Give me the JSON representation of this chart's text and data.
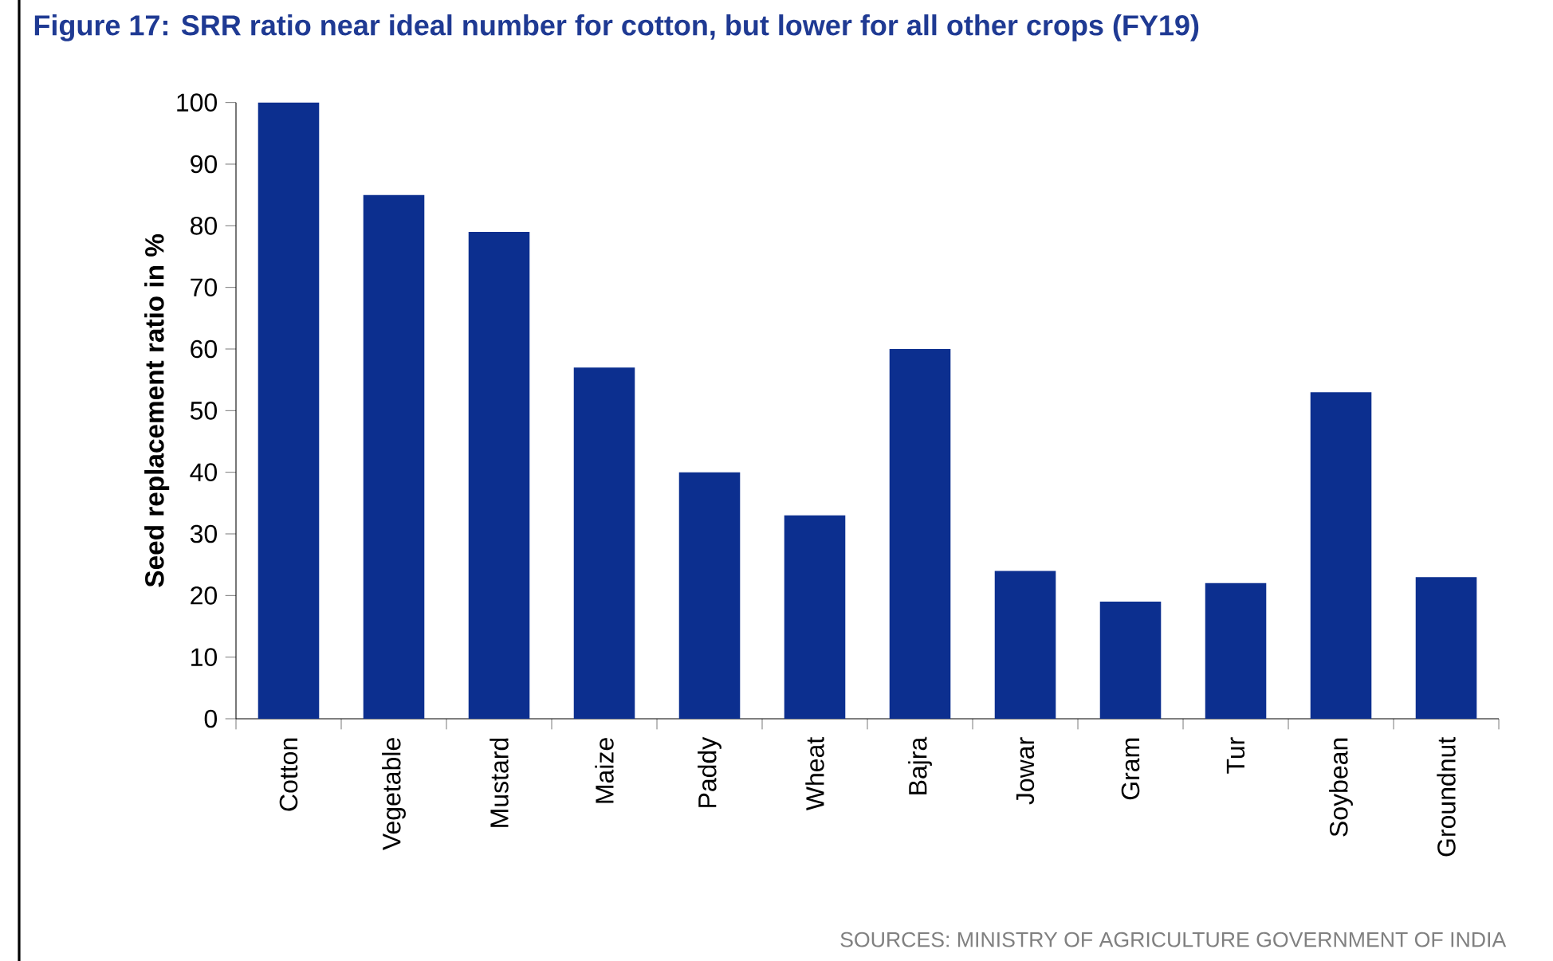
{
  "chart_data": {
    "type": "bar",
    "title": "Figure 17: SRR ratio near ideal number for cotton, but lower for all other crops (FY19)",
    "ylabel": "Seed replacement ratio in %",
    "categories": [
      "Cotton",
      "Vegetable",
      "Mustard",
      "Maize",
      "Paddy",
      "Wheat",
      "Bajra",
      "Jowar",
      "Gram",
      "Tur",
      "Soybean",
      "Groundnut"
    ],
    "values": [
      100,
      85,
      79,
      57,
      40,
      33,
      60,
      24,
      19,
      22,
      53,
      23
    ],
    "color": "#0c2f8f",
    "ylim": [
      0,
      100
    ],
    "yticks": [
      0,
      10,
      20,
      30,
      40,
      50,
      60,
      70,
      80,
      90,
      100
    ],
    "grid": false,
    "annotations": [
      "SOURCES: MINISTRY OF AGRICULTURE GOVERNMENT OF INDIA"
    ]
  }
}
